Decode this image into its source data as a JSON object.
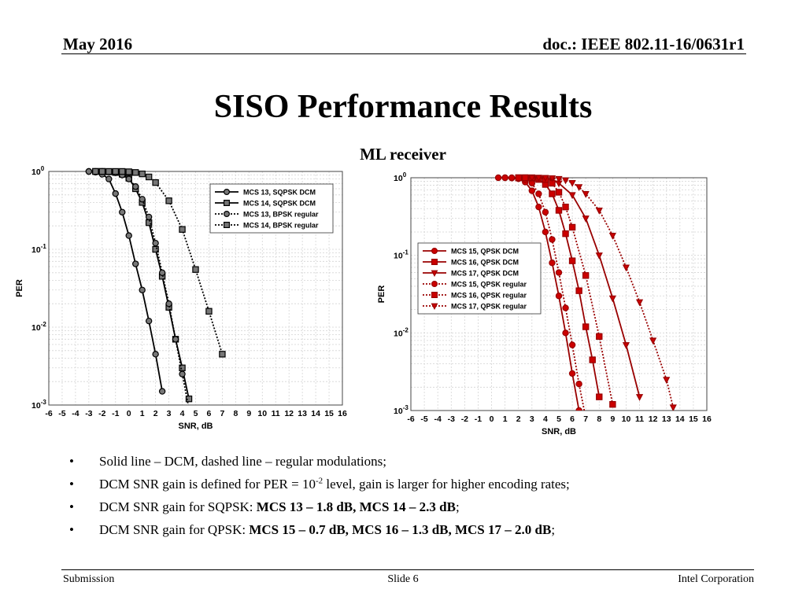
{
  "header": {
    "date": "May 2016",
    "doc": "doc.: IEEE 802.11-16/0631r1"
  },
  "title": "SISO Performance Results",
  "subtitle": "ML receiver",
  "chart_data": [
    {
      "type": "line",
      "xlabel": "SNR, dB",
      "ylabel": "PER",
      "yscale": "log",
      "xlim": [
        -6,
        16
      ],
      "ylim": [
        0.001,
        1
      ],
      "xticks": [
        "-6",
        "-5",
        "-4",
        "-3",
        "-2",
        "-1",
        "0",
        "1",
        "2",
        "3",
        "4",
        "5",
        "6",
        "7",
        "8",
        "9",
        "10",
        "11",
        "12",
        "13",
        "14",
        "15",
        "16"
      ],
      "yticks": [
        {
          "base": "10",
          "exp": "0"
        },
        {
          "base": "10",
          "exp": "-1"
        },
        {
          "base": "10",
          "exp": "-2"
        },
        {
          "base": "10",
          "exp": "-3"
        }
      ],
      "grid": true,
      "legend_position": "top-right",
      "series": [
        {
          "name": "MCS 13, SQPSK DCM",
          "marker": "circle",
          "style": "solid",
          "x": [
            -3,
            -2.5,
            -2,
            -1.5,
            -1,
            -0.5,
            0,
            0.5,
            1,
            1.5,
            2,
            2.5
          ],
          "y": [
            1,
            0.98,
            0.92,
            0.8,
            0.52,
            0.3,
            0.15,
            0.065,
            0.03,
            0.012,
            0.0045,
            0.0015
          ]
        },
        {
          "name": "MCS 14, SQPSK DCM",
          "marker": "square",
          "style": "solid",
          "x": [
            -2.5,
            -2,
            -1.5,
            -1,
            -0.5,
            0,
            0.5,
            1,
            1.5,
            2,
            2.5,
            3,
            3.5,
            4,
            4.5
          ],
          "y": [
            1,
            1,
            0.99,
            0.97,
            0.92,
            0.82,
            0.6,
            0.4,
            0.22,
            0.1,
            0.045,
            0.018,
            0.007,
            0.003,
            0.0012
          ]
        },
        {
          "name": "MCS 13, BPSK regular",
          "marker": "circle",
          "style": "dotted",
          "x": [
            -3,
            -2.5,
            -2,
            -1.5,
            -1,
            -0.5,
            0,
            0.5,
            1,
            1.5,
            2,
            2.5,
            3,
            3.5,
            4,
            4.5
          ],
          "y": [
            1,
            1,
            1,
            0.99,
            0.96,
            0.9,
            0.8,
            0.64,
            0.44,
            0.26,
            0.12,
            0.05,
            0.02,
            0.007,
            0.0025,
            0.0009
          ]
        },
        {
          "name": "MCS 14, BPSK regular",
          "marker": "square",
          "style": "dotted",
          "x": [
            -2.5,
            -2,
            -1.5,
            -1,
            -0.5,
            0,
            0.5,
            1,
            1.5,
            2,
            3,
            4,
            5,
            6,
            7
          ],
          "y": [
            1,
            1,
            1,
            1,
            1,
            0.99,
            0.97,
            0.93,
            0.85,
            0.72,
            0.42,
            0.18,
            0.055,
            0.016,
            0.0045
          ]
        }
      ]
    },
    {
      "type": "line",
      "xlabel": "SNR, dB",
      "ylabel": "PER",
      "yscale": "log",
      "xlim": [
        -6,
        16
      ],
      "ylim": [
        0.001,
        1
      ],
      "xticks": [
        "-6",
        "-5",
        "-4",
        "-3",
        "-2",
        "-1",
        "0",
        "1",
        "2",
        "3",
        "4",
        "5",
        "6",
        "7",
        "8",
        "9",
        "10",
        "11",
        "12",
        "13",
        "14",
        "15",
        "16"
      ],
      "yticks": [
        {
          "base": "10",
          "exp": "0"
        },
        {
          "base": "10",
          "exp": "-1"
        },
        {
          "base": "10",
          "exp": "-2"
        },
        {
          "base": "10",
          "exp": "-3"
        }
      ],
      "grid": true,
      "legend_position": "middle-left",
      "series": [
        {
          "name": "MCS 15, QPSK DCM",
          "marker": "circle",
          "style": "solid",
          "x": [
            1,
            1.5,
            2,
            2.5,
            3,
            3.5,
            4,
            4.5,
            5,
            5.5,
            6,
            6.5
          ],
          "y": [
            1,
            0.99,
            0.97,
            0.88,
            0.68,
            0.42,
            0.2,
            0.08,
            0.03,
            0.01,
            0.003,
            0.001
          ]
        },
        {
          "name": "MCS 16, QPSK DCM",
          "marker": "square",
          "style": "solid",
          "x": [
            2,
            2.5,
            3,
            3.5,
            4,
            4.5,
            5,
            5.5,
            6,
            6.5,
            7,
            7.5,
            8
          ],
          "y": [
            1,
            1,
            0.98,
            0.95,
            0.82,
            0.62,
            0.38,
            0.19,
            0.085,
            0.035,
            0.012,
            0.0045,
            0.0015
          ]
        },
        {
          "name": "MCS 17, QPSK DCM",
          "marker": "triangle",
          "style": "solid",
          "x": [
            2.5,
            3,
            3.5,
            4,
            4.5,
            5,
            6,
            7,
            8,
            9,
            10,
            11
          ],
          "y": [
            1,
            1,
            0.99,
            0.97,
            0.93,
            0.85,
            0.6,
            0.3,
            0.1,
            0.028,
            0.007,
            0.0015
          ]
        },
        {
          "name": "MCS 15, QPSK regular",
          "marker": "circle",
          "style": "dotted",
          "x": [
            0.5,
            1,
            1.5,
            2,
            2.5,
            3,
            3.5,
            4,
            4.5,
            5,
            5.5,
            6,
            6.5,
            7
          ],
          "y": [
            1,
            1,
            1,
            0.99,
            0.95,
            0.85,
            0.62,
            0.36,
            0.16,
            0.06,
            0.021,
            0.007,
            0.0022,
            0.0008
          ]
        },
        {
          "name": "MCS 16, QPSK regular",
          "marker": "square",
          "style": "dotted",
          "x": [
            2,
            2.5,
            3,
            3.5,
            4,
            4.5,
            5,
            5.5,
            6,
            7,
            8,
            9
          ],
          "y": [
            1,
            1,
            1,
            0.99,
            0.95,
            0.85,
            0.65,
            0.42,
            0.23,
            0.055,
            0.009,
            0.0012
          ]
        },
        {
          "name": "MCS 17, QPSK regular",
          "marker": "triangle",
          "style": "dotted",
          "x": [
            3,
            3.5,
            4,
            4.5,
            5,
            5.5,
            6,
            6.5,
            7,
            8,
            9,
            10,
            11,
            12,
            13,
            13.5
          ],
          "y": [
            1,
            1,
            1,
            0.99,
            0.97,
            0.93,
            0.86,
            0.76,
            0.62,
            0.38,
            0.18,
            0.07,
            0.025,
            0.008,
            0.0025,
            0.0011
          ]
        }
      ]
    }
  ],
  "bullets": [
    {
      "marker": "•",
      "text": "Solid line – DCM, dashed line – regular modulations;"
    },
    {
      "marker": "•",
      "pre": "DCM SNR gain is defined for PER = 10",
      "sup": "-2",
      "post": " level, gain is larger for higher encoding rates;"
    },
    {
      "marker": "•",
      "pre": "DCM SNR gain for SQPSK: ",
      "bold": "MCS 13 – 1.8 dB, MCS 14 – 2.3 dB",
      "post": ";"
    },
    {
      "marker": "•",
      "pre": "DCM SNR gain for QPSK: ",
      "bold": "MCS 15 – 0.7 dB, MCS 16 – 1.3 dB, MCS 17 – 2.0 dB",
      "post": ";"
    }
  ],
  "footer": {
    "left": "Submission",
    "center": "Slide 6",
    "right": "Intel Corporation"
  },
  "colors": {
    "chart1_series": "#777777",
    "chart1_stroke": "#000000",
    "chart2_series": "#cc0000",
    "chart2_stroke": "#990000",
    "grid": "#d4d4d4"
  }
}
